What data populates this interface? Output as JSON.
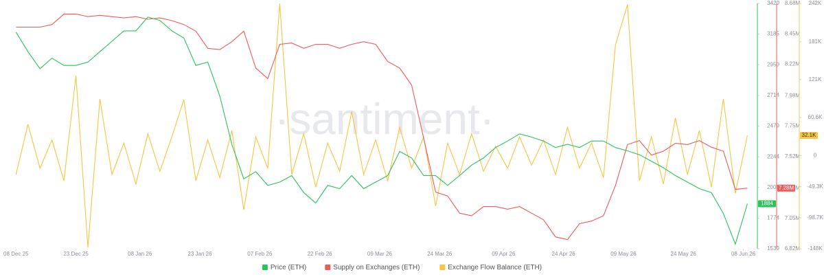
{
  "chart_data": {
    "type": "line",
    "watermark": "·santiment·",
    "x": [
      "2025-12-08",
      "2025-12-11",
      "2025-12-14",
      "2025-12-17",
      "2025-12-20",
      "2025-12-23",
      "2025-12-26",
      "2025-12-29",
      "2026-01-01",
      "2026-01-04",
      "2026-01-07",
      "2026-01-10",
      "2026-01-13",
      "2026-01-16",
      "2026-01-19",
      "2026-01-22",
      "2026-01-25",
      "2026-01-28",
      "2026-01-31",
      "2026-02-03",
      "2026-02-06",
      "2026-02-09",
      "2026-02-12",
      "2026-02-15",
      "2026-02-18",
      "2026-02-21",
      "2026-02-24",
      "2026-02-27",
      "2026-03-02",
      "2026-03-05",
      "2026-03-08",
      "2026-03-11",
      "2026-03-14",
      "2026-03-17",
      "2026-03-20",
      "2026-03-23",
      "2026-03-26",
      "2026-03-29",
      "2026-04-01",
      "2026-04-04",
      "2026-04-07",
      "2026-04-10",
      "2026-04-13",
      "2026-04-16",
      "2026-04-19",
      "2026-04-22",
      "2026-04-25",
      "2026-04-28",
      "2026-05-01",
      "2026-05-04",
      "2026-05-07",
      "2026-05-10",
      "2026-05-13",
      "2026-05-16",
      "2026-05-19",
      "2026-05-22",
      "2026-05-25",
      "2026-05-28",
      "2026-05-31",
      "2026-06-03",
      "2026-06-06",
      "2026-06-09"
    ],
    "xlim": [
      "2025-12-04",
      "2026-06-11"
    ],
    "xticks": [
      {
        "value": "2025-12-08",
        "label": "08 Dec 25"
      },
      {
        "value": "2025-12-23",
        "label": "23 Dec 25"
      },
      {
        "value": "2026-01-08",
        "label": "08 Jan 26"
      },
      {
        "value": "2026-01-23",
        "label": "23 Jan 26"
      },
      {
        "value": "2026-02-07",
        "label": "07 Feb 26"
      },
      {
        "value": "2026-02-22",
        "label": "22 Feb 26"
      },
      {
        "value": "2026-03-09",
        "label": "09 Mar 26"
      },
      {
        "value": "2026-03-24",
        "label": "24 Mar 26"
      },
      {
        "value": "2026-04-09",
        "label": "09 Apr 26"
      },
      {
        "value": "2026-04-24",
        "label": "24 Apr 26"
      },
      {
        "value": "2026-05-09",
        "label": "09 May 26"
      },
      {
        "value": "2026-05-24",
        "label": "24 May 26"
      },
      {
        "value": "2026-06-08",
        "label": "08 Jun 26"
      }
    ],
    "ylim": [
      1539,
      3420
    ],
    "yticks": [
      3420,
      3185,
      2950,
      2714,
      2479,
      2244,
      2009,
      1774,
      1539
    ],
    "y2lim": [
      6820000,
      8680000
    ],
    "y2ticks": [
      {
        "value": 8680000,
        "label": "8.68M"
      },
      {
        "value": 8450000,
        "label": "8.45M"
      },
      {
        "value": 8220000,
        "label": "8.22M"
      },
      {
        "value": 7980000,
        "label": "7.98M"
      },
      {
        "value": 7750000,
        "label": "7.75M"
      },
      {
        "value": 7520000,
        "label": "7.52M"
      },
      {
        "value": 7280000,
        "label": "7.28M"
      },
      {
        "value": 7050000,
        "label": "7.05M"
      },
      {
        "value": 6820000,
        "label": "6.82M"
      }
    ],
    "y3lim": [
      -148000,
      242000
    ],
    "y3ticks": [
      {
        "value": 242000,
        "label": "242K"
      },
      {
        "value": 181000,
        "label": "181K"
      },
      {
        "value": 121000,
        "label": "121K"
      },
      {
        "value": 60600,
        "label": "60.6K"
      },
      0,
      {
        "value": -49300,
        "label": "-49.3K"
      },
      {
        "value": -98700,
        "label": "-98.7K"
      },
      {
        "value": -148000,
        "label": "-148K"
      }
    ],
    "series": [
      {
        "name": "Price (ETH)",
        "color": "#2bc25a",
        "axis": "y",
        "values": [
          3200,
          3050,
          2920,
          3000,
          2945,
          2945,
          2970,
          3050,
          3130,
          3210,
          3210,
          3315,
          3290,
          3210,
          3155,
          2945,
          2970,
          2710,
          2340,
          2075,
          2130,
          2025,
          2050,
          2100,
          1970,
          1890,
          2025,
          2000,
          2100,
          2000,
          2050,
          2100,
          2285,
          2235,
          2100,
          2100,
          2025,
          2100,
          2180,
          2235,
          2315,
          2365,
          2420,
          2395,
          2365,
          2315,
          2340,
          2315,
          2365,
          2365,
          2315,
          2290,
          2260,
          2210,
          2160,
          2100,
          2050,
          2000,
          1970,
          1810,
          1575,
          1884
        ]
      },
      {
        "name": "Supply on Exchanges (ETH)",
        "color": "#ef5a5a",
        "axis": "y2",
        "end_label": "7.28M",
        "values": [
          8500000,
          8500000,
          8500000,
          8520000,
          8600000,
          8600000,
          8580000,
          8590000,
          8580000,
          8570000,
          8580000,
          8560000,
          8570000,
          8550000,
          8520000,
          8470000,
          8340000,
          8330000,
          8390000,
          8470000,
          8190000,
          8110000,
          8370000,
          8380000,
          8340000,
          8370000,
          8370000,
          8340000,
          8370000,
          8390000,
          8370000,
          8240000,
          8190000,
          8060000,
          7660000,
          7250000,
          7220000,
          7090000,
          7070000,
          7140000,
          7140000,
          7120000,
          7140000,
          7090000,
          7040000,
          6910000,
          6890000,
          7010000,
          7030000,
          7070000,
          7300000,
          7610000,
          7640000,
          7530000,
          7560000,
          7620000,
          7610000,
          7640000,
          7590000,
          7560000,
          7270000,
          7280000
        ]
      },
      {
        "name": "Exchange Flow Balance (ETH)",
        "color": "#f7c443",
        "axis": "y3",
        "end_label": "32.1K",
        "values": [
          -30000,
          50000,
          -20000,
          25000,
          -40000,
          127000,
          -146000,
          90000,
          -30000,
          20000,
          -45000,
          35000,
          -25000,
          30000,
          89000,
          -40000,
          25000,
          -35000,
          40000,
          -86000,
          30000,
          -20000,
          242000,
          -30000,
          35000,
          -50000,
          20000,
          -25000,
          70000,
          -30000,
          25000,
          -40000,
          45000,
          -20000,
          30000,
          -80000,
          20000,
          -30000,
          35000,
          -25000,
          15000,
          -20000,
          30000,
          -15000,
          25000,
          -30000,
          45000,
          -20000,
          20000,
          -35000,
          176000,
          240000,
          -40000,
          30000,
          -45000,
          60000,
          -30000,
          40000,
          -50000,
          90000,
          -60000,
          32100
        ]
      }
    ]
  }
}
